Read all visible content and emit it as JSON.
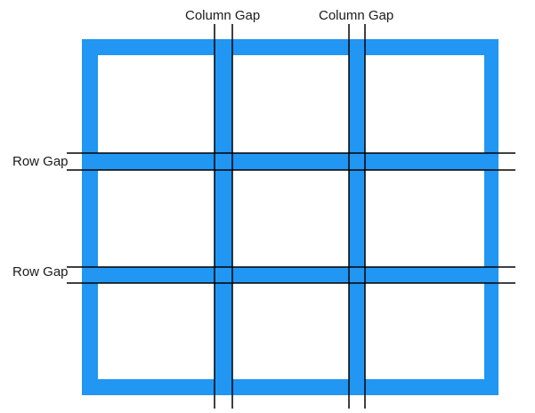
{
  "diagram": {
    "labels": {
      "column_gap_left": "Column Gap",
      "column_gap_right": "Column Gap",
      "row_gap_top": "Row Gap",
      "row_gap_bottom": "Row Gap"
    },
    "grid": {
      "columns": 3,
      "rows": 3
    },
    "colors": {
      "gap_fill": "#2196F3",
      "cell_fill": "#ffffff",
      "guide_line": "#000000"
    }
  }
}
